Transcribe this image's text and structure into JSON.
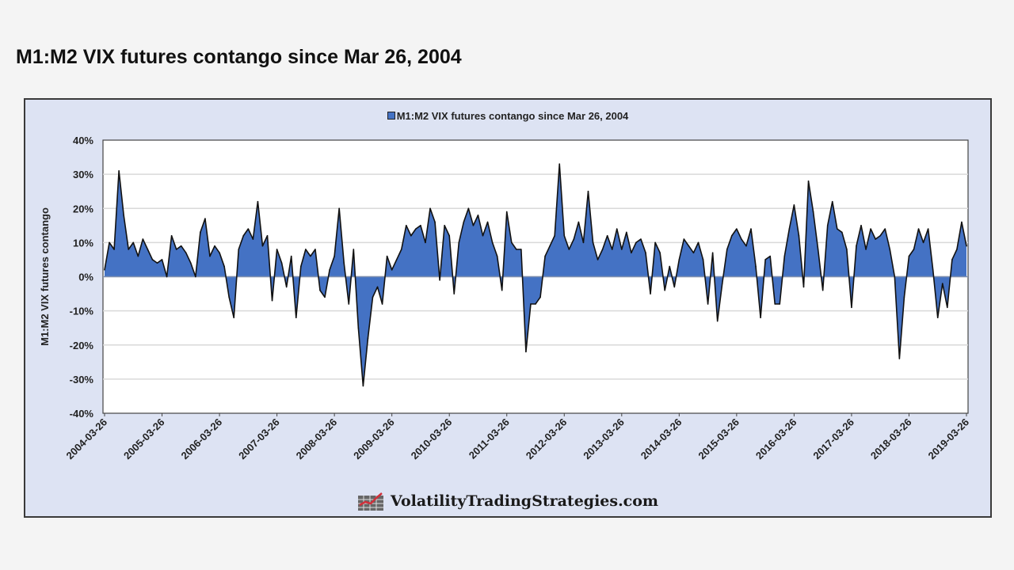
{
  "page": {
    "title": "M1:M2 VIX futures contango since Mar 26, 2004"
  },
  "chart_data": {
    "type": "area",
    "title": "",
    "legend": {
      "entries": [
        "M1:M2 VIX futures contango since Mar 26, 2004"
      ],
      "placement": "top"
    },
    "xlabel": "",
    "ylabel": "M1:M2 VIX futures contango",
    "ylim": [
      -40,
      40
    ],
    "y_unit": "%",
    "y_ticks": [
      "40%",
      "30%",
      "20%",
      "10%",
      "0%",
      "-10%",
      "-20%",
      "-30%",
      "-40%"
    ],
    "x_ticks": [
      "2004-03-26",
      "2005-03-26",
      "2006-03-26",
      "2007-03-26",
      "2008-03-26",
      "2009-03-26",
      "2010-03-26",
      "2011-03-26",
      "2012-03-26",
      "2013-03-26",
      "2014-03-26",
      "2015-03-26",
      "2016-03-26",
      "2017-03-26",
      "2018-03-26",
      "2019-03-26"
    ],
    "grid": true,
    "colors": {
      "fill": "#4472c4",
      "line": "#111111",
      "background": "#dde3f3"
    },
    "series": [
      {
        "name": "M1:M2 VIX futures contango since Mar 26, 2004",
        "x": [
          "2004-03",
          "2004-04",
          "2004-05",
          "2004-06",
          "2004-07",
          "2004-08",
          "2004-09",
          "2004-10",
          "2004-11",
          "2004-12",
          "2005-01",
          "2005-02",
          "2005-03",
          "2005-04",
          "2005-05",
          "2005-06",
          "2005-07",
          "2005-08",
          "2005-09",
          "2005-10",
          "2005-11",
          "2005-12",
          "2006-01",
          "2006-02",
          "2006-03",
          "2006-04",
          "2006-05",
          "2006-06",
          "2006-07",
          "2006-08",
          "2006-09",
          "2006-10",
          "2006-11",
          "2006-12",
          "2007-01",
          "2007-02",
          "2007-03",
          "2007-04",
          "2007-05",
          "2007-06",
          "2007-07",
          "2007-08",
          "2007-09",
          "2007-10",
          "2007-11",
          "2007-12",
          "2008-01",
          "2008-02",
          "2008-03",
          "2008-04",
          "2008-05",
          "2008-06",
          "2008-07",
          "2008-08",
          "2008-09",
          "2008-10",
          "2008-11",
          "2008-12",
          "2009-01",
          "2009-02",
          "2009-03",
          "2009-04",
          "2009-05",
          "2009-06",
          "2009-07",
          "2009-08",
          "2009-09",
          "2009-10",
          "2009-11",
          "2009-12",
          "2010-01",
          "2010-02",
          "2010-03",
          "2010-04",
          "2010-05",
          "2010-06",
          "2010-07",
          "2010-08",
          "2010-09",
          "2010-10",
          "2010-11",
          "2010-12",
          "2011-01",
          "2011-02",
          "2011-03",
          "2011-04",
          "2011-05",
          "2011-06",
          "2011-07",
          "2011-08",
          "2011-09",
          "2011-10",
          "2011-11",
          "2011-12",
          "2012-01",
          "2012-02",
          "2012-03",
          "2012-04",
          "2012-05",
          "2012-06",
          "2012-07",
          "2012-08",
          "2012-09",
          "2012-10",
          "2012-11",
          "2012-12",
          "2013-01",
          "2013-02",
          "2013-03",
          "2013-04",
          "2013-05",
          "2013-06",
          "2013-07",
          "2013-08",
          "2013-09",
          "2013-10",
          "2013-11",
          "2013-12",
          "2014-01",
          "2014-02",
          "2014-03",
          "2014-04",
          "2014-05",
          "2014-06",
          "2014-07",
          "2014-08",
          "2014-09",
          "2014-10",
          "2014-11",
          "2014-12",
          "2015-01",
          "2015-02",
          "2015-03",
          "2015-04",
          "2015-05",
          "2015-06",
          "2015-07",
          "2015-08",
          "2015-09",
          "2015-10",
          "2015-11",
          "2015-12",
          "2016-01",
          "2016-02",
          "2016-03",
          "2016-04",
          "2016-05",
          "2016-06",
          "2016-07",
          "2016-08",
          "2016-09",
          "2016-10",
          "2016-11",
          "2016-12",
          "2017-01",
          "2017-02",
          "2017-03",
          "2017-04",
          "2017-05",
          "2017-06",
          "2017-07",
          "2017-08",
          "2017-09",
          "2017-10",
          "2017-11",
          "2017-12",
          "2018-01",
          "2018-02",
          "2018-03",
          "2018-04",
          "2018-05",
          "2018-06",
          "2018-07",
          "2018-08",
          "2018-09",
          "2018-10",
          "2018-11",
          "2018-12",
          "2019-01",
          "2019-02",
          "2019-03"
        ],
        "values": [
          2,
          10,
          8,
          31,
          18,
          8,
          10,
          6,
          11,
          8,
          5,
          4,
          5,
          0,
          12,
          8,
          9,
          7,
          4,
          0,
          13,
          17,
          6,
          9,
          7,
          3,
          -6,
          -12,
          8,
          12,
          14,
          11,
          22,
          9,
          12,
          -7,
          8,
          4,
          -3,
          6,
          -12,
          3,
          8,
          6,
          8,
          -4,
          -6,
          2,
          6,
          20,
          4,
          -8,
          8,
          -15,
          -32,
          -18,
          -6,
          -3,
          -8,
          6,
          2,
          5,
          8,
          15,
          12,
          14,
          15,
          10,
          20,
          16,
          -1,
          15,
          12,
          -5,
          10,
          16,
          20,
          15,
          18,
          12,
          16,
          10,
          6,
          -4,
          19,
          10,
          8,
          8,
          -22,
          -8,
          -8,
          -6,
          6,
          9,
          12,
          33,
          12,
          8,
          11,
          16,
          10,
          25,
          10,
          5,
          8,
          12,
          8,
          14,
          8,
          13,
          7,
          10,
          11,
          7,
          -5,
          10,
          7,
          -4,
          3,
          -3,
          5,
          11,
          9,
          7,
          10,
          5,
          -8,
          7,
          -13,
          -2,
          8,
          12,
          14,
          11,
          9,
          14,
          3,
          -12,
          5,
          6,
          -8,
          -8,
          6,
          14,
          21,
          12,
          -3,
          28,
          19,
          8,
          -4,
          15,
          22,
          14,
          13,
          8,
          -9,
          9,
          15,
          8,
          14,
          11,
          12,
          14,
          8,
          0,
          -24,
          -6,
          6,
          8,
          14,
          10,
          14,
          2,
          -12,
          -2,
          -9,
          5,
          8,
          16,
          9
        ]
      }
    ]
  },
  "watermark": {
    "text": "VolatilityTradingStrategies.com"
  }
}
